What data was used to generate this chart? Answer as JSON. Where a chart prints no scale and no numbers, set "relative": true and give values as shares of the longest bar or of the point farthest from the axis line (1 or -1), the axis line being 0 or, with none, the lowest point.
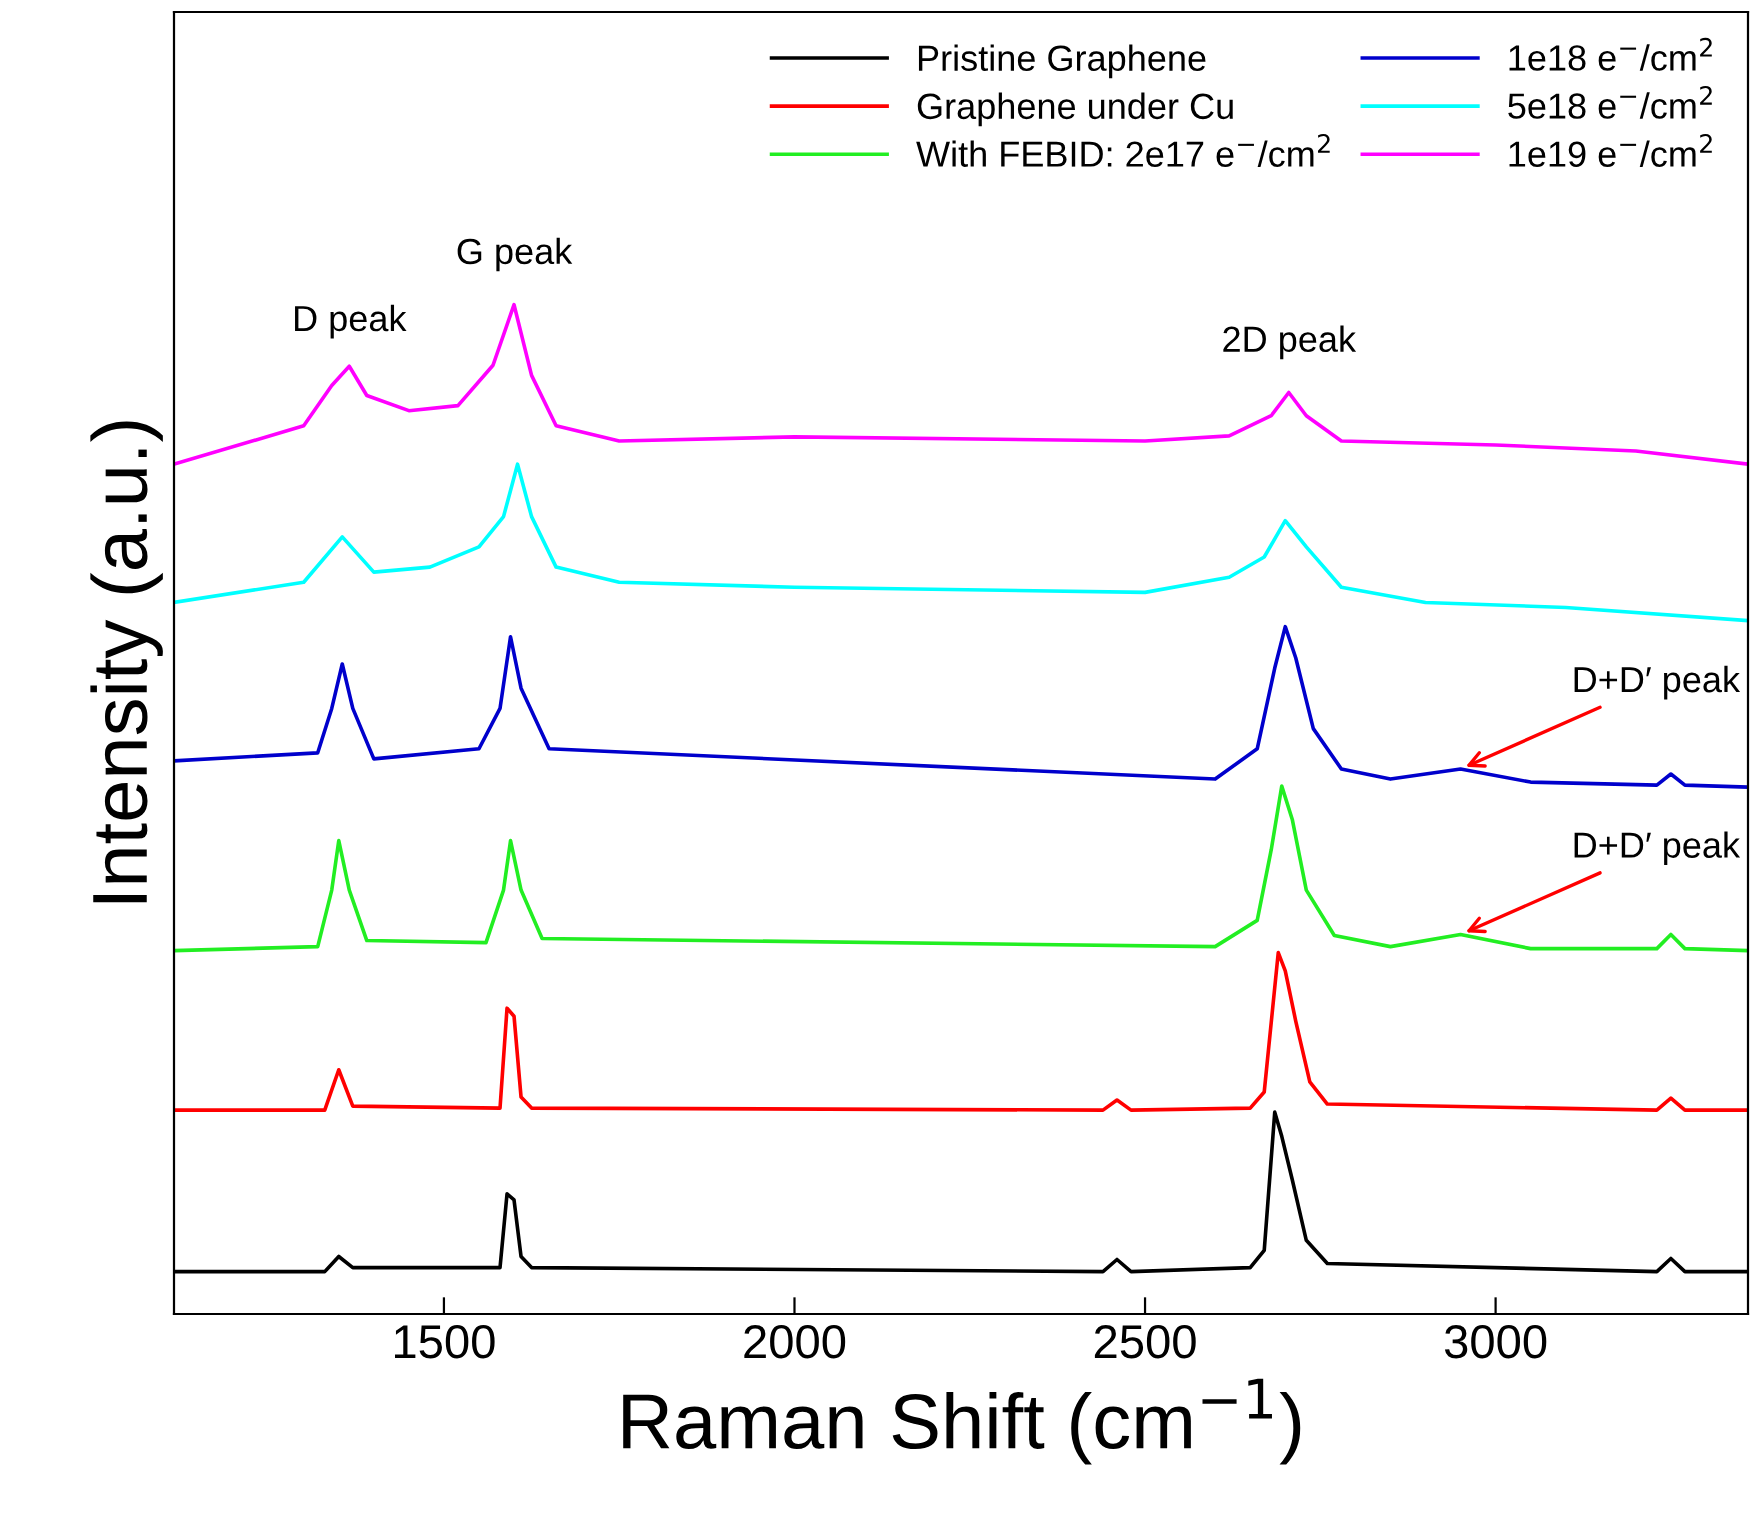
{
  "chart_data": {
    "type": "line",
    "relative": true,
    "xlabel": "Raman Shift (cm$^{−1}$)",
    "ylabel": "Intensity (a.u.)",
    "xlim": [
      1115,
      3360
    ],
    "xticks": [
      1500,
      2000,
      2500,
      3000
    ],
    "legend": "top right",
    "grid": false,
    "series": [
      {
        "name": "Pristine Graphene",
        "color": "#000000",
        "x": [
          1115,
          1330,
          1350,
          1370,
          1580,
          1590,
          1600,
          1610,
          1625,
          2440,
          2460,
          2480,
          2650,
          2670,
          2685,
          2695,
          2710,
          2730,
          2760,
          3230,
          3250,
          3270,
          3360
        ],
        "values": [
          0.042,
          0.042,
          0.057,
          0.046,
          0.046,
          0.119,
          0.113,
          0.057,
          0.046,
          0.042,
          0.054,
          0.042,
          0.046,
          0.063,
          0.2,
          0.176,
          0.133,
          0.073,
          0.05,
          0.042,
          0.055,
          0.042,
          0.042
        ]
      },
      {
        "name": "Graphene under Cu",
        "color": "#ff0000",
        "x": [
          1115,
          1330,
          1350,
          1370,
          1580,
          1590,
          1600,
          1610,
          1625,
          2440,
          2460,
          2480,
          2650,
          2670,
          2690,
          2700,
          2715,
          2735,
          2760,
          3230,
          3250,
          3270,
          3360
        ],
        "values": [
          0.202,
          0.202,
          0.242,
          0.206,
          0.204,
          0.303,
          0.295,
          0.215,
          0.204,
          0.202,
          0.212,
          0.202,
          0.204,
          0.22,
          0.358,
          0.34,
          0.29,
          0.23,
          0.208,
          0.202,
          0.214,
          0.202,
          0.202
        ]
      },
      {
        "name": "With FEBID: 2e17 e$^{−}$/cm$^{2}$",
        "color": "#22ee22",
        "x": [
          1115,
          1320,
          1340,
          1350,
          1365,
          1390,
          1560,
          1585,
          1595,
          1610,
          1640,
          2600,
          2660,
          2680,
          2695,
          2710,
          2730,
          2770,
          2850,
          2950,
          3050,
          3230,
          3250,
          3270,
          3360
        ],
        "values": [
          0.36,
          0.364,
          0.42,
          0.469,
          0.42,
          0.37,
          0.368,
          0.42,
          0.469,
          0.42,
          0.372,
          0.364,
          0.39,
          0.46,
          0.523,
          0.49,
          0.42,
          0.375,
          0.364,
          0.376,
          0.362,
          0.362,
          0.376,
          0.362,
          0.36
        ]
      },
      {
        "name": "1e18 e$^{−}$/cm$^{2}$",
        "color": "#0000cc",
        "x": [
          1115,
          1320,
          1340,
          1355,
          1370,
          1400,
          1550,
          1580,
          1595,
          1610,
          1650,
          2600,
          2660,
          2685,
          2700,
          2715,
          2740,
          2780,
          2850,
          2950,
          3050,
          3230,
          3250,
          3270,
          3360
        ],
        "values": [
          0.548,
          0.556,
          0.6,
          0.644,
          0.6,
          0.55,
          0.56,
          0.6,
          0.671,
          0.62,
          0.56,
          0.53,
          0.56,
          0.64,
          0.681,
          0.65,
          0.58,
          0.54,
          0.53,
          0.54,
          0.527,
          0.524,
          0.535,
          0.524,
          0.522
        ]
      },
      {
        "name": "5e18 e$^{−}$/cm$^{2}$",
        "color": "#00ffff",
        "x": [
          1115,
          1300,
          1355,
          1400,
          1480,
          1550,
          1585,
          1605,
          1625,
          1660,
          1750,
          2000,
          2500,
          2620,
          2670,
          2700,
          2730,
          2780,
          2900,
          3100,
          3360
        ],
        "values": [
          0.705,
          0.725,
          0.77,
          0.735,
          0.74,
          0.76,
          0.79,
          0.842,
          0.79,
          0.74,
          0.725,
          0.72,
          0.715,
          0.73,
          0.75,
          0.786,
          0.76,
          0.72,
          0.705,
          0.7,
          0.687
        ]
      },
      {
        "name": "1e19 e$^{−}$/cm$^{2}$",
        "color": "#ff00ff",
        "x": [
          1115,
          1300,
          1340,
          1365,
          1390,
          1450,
          1520,
          1570,
          1600,
          1625,
          1660,
          1750,
          2000,
          2500,
          2620,
          2680,
          2705,
          2730,
          2780,
          3000,
          3200,
          3360
        ],
        "values": [
          0.842,
          0.88,
          0.92,
          0.939,
          0.91,
          0.895,
          0.9,
          0.94,
          1.0,
          0.93,
          0.88,
          0.865,
          0.869,
          0.865,
          0.87,
          0.89,
          0.913,
          0.89,
          0.865,
          0.861,
          0.855,
          0.842
        ]
      }
    ],
    "annotations": [
      {
        "text": "D peak",
        "x": 1365,
        "y": 0.939
      },
      {
        "text": "G peak",
        "x": 1600,
        "y": 1.0
      },
      {
        "text": "2D peak",
        "x": 2705,
        "y": 0.913
      },
      {
        "text": "D+D′ peak",
        "x": 2950,
        "y": 0.54
      },
      {
        "text": "D+D′ peak",
        "x": 2950,
        "y": 0.376
      }
    ]
  }
}
